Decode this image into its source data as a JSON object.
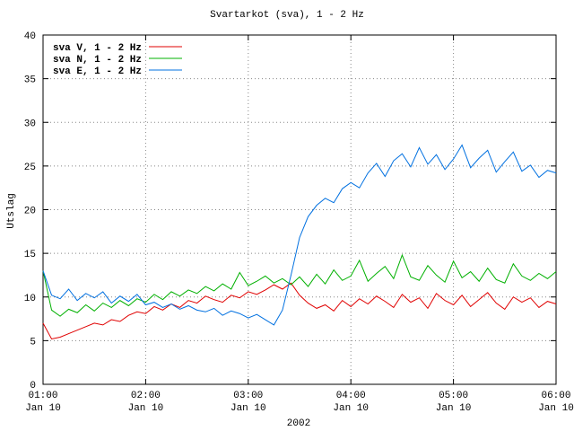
{
  "chart_data": {
    "type": "line",
    "title": "Svartarkot (sva), 1 - 2 Hz",
    "y_label": "Utslag",
    "x_label": "2002",
    "x": [
      "2002-01-10T01:00",
      "2002-01-10T01:05",
      "2002-01-10T01:10",
      "2002-01-10T01:15",
      "2002-01-10T01:20",
      "2002-01-10T01:25",
      "2002-01-10T01:30",
      "2002-01-10T01:35",
      "2002-01-10T01:40",
      "2002-01-10T01:45",
      "2002-01-10T01:50",
      "2002-01-10T01:55",
      "2002-01-10T02:00",
      "2002-01-10T02:05",
      "2002-01-10T02:10",
      "2002-01-10T02:15",
      "2002-01-10T02:20",
      "2002-01-10T02:25",
      "2002-01-10T02:30",
      "2002-01-10T02:35",
      "2002-01-10T02:40",
      "2002-01-10T02:45",
      "2002-01-10T02:50",
      "2002-01-10T02:55",
      "2002-01-10T03:00",
      "2002-01-10T03:05",
      "2002-01-10T03:10",
      "2002-01-10T03:15",
      "2002-01-10T03:20",
      "2002-01-10T03:25",
      "2002-01-10T03:30",
      "2002-01-10T03:35",
      "2002-01-10T03:40",
      "2002-01-10T03:45",
      "2002-01-10T03:50",
      "2002-01-10T03:55",
      "2002-01-10T04:00",
      "2002-01-10T04:05",
      "2002-01-10T04:10",
      "2002-01-10T04:15",
      "2002-01-10T04:20",
      "2002-01-10T04:25",
      "2002-01-10T04:30",
      "2002-01-10T04:35",
      "2002-01-10T04:40",
      "2002-01-10T04:45",
      "2002-01-10T04:50",
      "2002-01-10T04:55",
      "2002-01-10T05:00",
      "2002-01-10T05:05",
      "2002-01-10T05:10",
      "2002-01-10T05:15",
      "2002-01-10T05:20",
      "2002-01-10T05:25",
      "2002-01-10T05:30",
      "2002-01-10T05:35",
      "2002-01-10T05:40",
      "2002-01-10T05:45",
      "2002-01-10T05:50",
      "2002-01-10T05:55",
      "2002-01-10T06:00"
    ],
    "series": [
      {
        "name": "sva V, 1 - 2 Hz",
        "color": "#e00000",
        "values": [
          7.0,
          5.2,
          5.4,
          5.8,
          6.2,
          6.6,
          7.0,
          6.8,
          7.4,
          7.2,
          7.9,
          8.3,
          8.1,
          8.9,
          8.5,
          9.2,
          8.8,
          9.6,
          9.3,
          10.1,
          9.7,
          9.4,
          10.2,
          9.9,
          10.6,
          10.3,
          10.8,
          11.4,
          10.9,
          11.6,
          10.2,
          9.3,
          8.7,
          9.1,
          8.4,
          9.6,
          8.9,
          9.8,
          9.2,
          10.1,
          9.5,
          8.8,
          10.3,
          9.4,
          9.9,
          8.7,
          10.4,
          9.6,
          9.1,
          10.2,
          8.9,
          9.7,
          10.5,
          9.3,
          8.6,
          10.0,
          9.4,
          9.9,
          8.8,
          9.5,
          9.2
        ]
      },
      {
        "name": "sva N, 1 - 2 Hz",
        "color": "#00b000",
        "values": [
          13.0,
          8.5,
          7.8,
          8.6,
          8.2,
          9.1,
          8.4,
          9.3,
          8.8,
          9.6,
          9.0,
          9.8,
          9.4,
          10.3,
          9.7,
          10.6,
          10.1,
          10.8,
          10.4,
          11.2,
          10.7,
          11.5,
          10.9,
          12.8,
          11.3,
          11.8,
          12.4,
          11.6,
          12.1,
          11.4,
          12.3,
          11.2,
          12.6,
          11.5,
          13.1,
          11.9,
          12.4,
          14.2,
          11.8,
          12.7,
          13.5,
          12.1,
          14.8,
          12.3,
          11.9,
          13.6,
          12.5,
          11.7,
          14.1,
          12.2,
          12.9,
          11.8,
          13.3,
          12.0,
          11.6,
          13.8,
          12.4,
          11.9,
          12.7,
          12.1,
          12.9
        ]
      },
      {
        "name": "sva E, 1 - 2 Hz",
        "color": "#0070e0",
        "values": [
          13.0,
          10.2,
          9.8,
          10.9,
          9.6,
          10.4,
          9.9,
          10.6,
          9.3,
          10.1,
          9.5,
          10.3,
          9.1,
          9.4,
          8.8,
          9.2,
          8.6,
          9.0,
          8.5,
          8.3,
          8.7,
          7.9,
          8.4,
          8.1,
          7.6,
          8.0,
          7.4,
          6.8,
          8.5,
          12.5,
          16.8,
          19.2,
          20.5,
          21.3,
          20.8,
          22.4,
          23.1,
          22.5,
          24.2,
          25.3,
          23.8,
          25.6,
          26.4,
          24.9,
          27.1,
          25.2,
          26.3,
          24.6,
          25.8,
          27.4,
          24.8,
          25.9,
          26.8,
          24.3,
          25.5,
          26.6,
          24.4,
          25.1,
          23.7,
          24.5,
          24.2
        ]
      }
    ],
    "xlim": [
      "2002-01-10T01:00",
      "2002-01-10T06:00"
    ],
    "xticks": [
      {
        "value": "2002-01-10T01:00",
        "label": "01:00\nJan 10"
      },
      {
        "value": "2002-01-10T02:00",
        "label": "02:00\nJan 10"
      },
      {
        "value": "2002-01-10T03:00",
        "label": "03:00\nJan 10"
      },
      {
        "value": "2002-01-10T04:00",
        "label": "04:00\nJan 10"
      },
      {
        "value": "2002-01-10T05:00",
        "label": "05:00\nJan 10"
      },
      {
        "value": "2002-01-10T06:00",
        "label": "06:00\nJan 10"
      }
    ],
    "ylim": [
      0,
      40
    ],
    "yticks": [
      0,
      5,
      10,
      15,
      20,
      25,
      30,
      35,
      40
    ],
    "grid": true,
    "legend": "top-left"
  }
}
